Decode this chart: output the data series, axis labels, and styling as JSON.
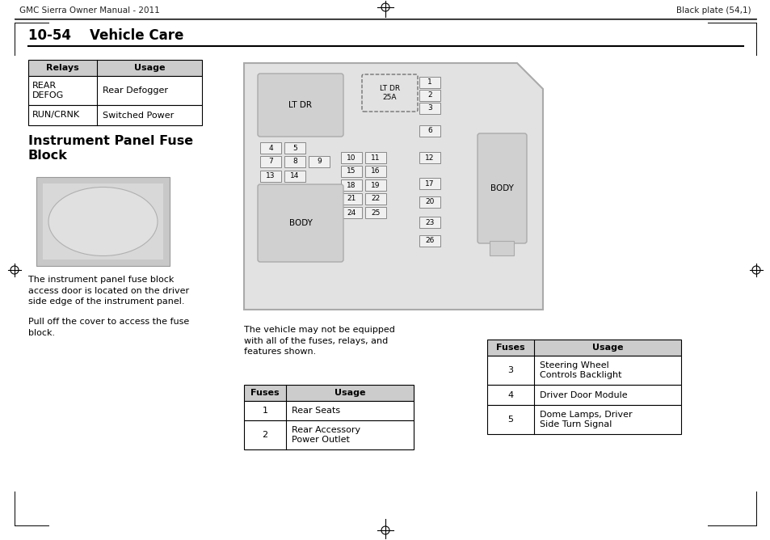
{
  "page_header_left": "GMC Sierra Owner Manual - 2011",
  "page_header_right": "Black plate (54,1)",
  "section_title": "10-54    Vehicle Care",
  "relay_table_header": [
    "Relays",
    "Usage"
  ],
  "relay_table_rows": [
    [
      "REAR\nDEFOG",
      "Rear Defogger"
    ],
    [
      "RUN/CRNK",
      "Switched Power"
    ]
  ],
  "ipfb_title": "Instrument Panel Fuse\nBlock",
  "body_text1": "The instrument panel fuse block\naccess door is located on the driver\nside edge of the instrument panel.",
  "body_text2": "Pull off the cover to access the fuse\nblock.",
  "note_text": "The vehicle may not be equipped\nwith all of the fuses, relays, and\nfeatures shown.",
  "fuse_table1_header": [
    "Fuses",
    "Usage"
  ],
  "fuse_table1_rows": [
    [
      "1",
      "Rear Seats"
    ],
    [
      "2",
      "Rear Accessory\nPower Outlet"
    ]
  ],
  "fuse_table2_header": [
    "Fuses",
    "Usage"
  ],
  "fuse_table2_rows": [
    [
      "3",
      "Steering Wheel\nControls Backlight"
    ],
    [
      "4",
      "Driver Door Module"
    ],
    [
      "5",
      "Dome Lamps, Driver\nSide Turn Signal"
    ]
  ],
  "bg_color": "#ffffff",
  "header_bg": "#cccccc",
  "fuse_block_bg": "#e2e2e2",
  "relay_box_bg": "#d0d0d0",
  "fuse_box_bg": "#f0f0f0"
}
